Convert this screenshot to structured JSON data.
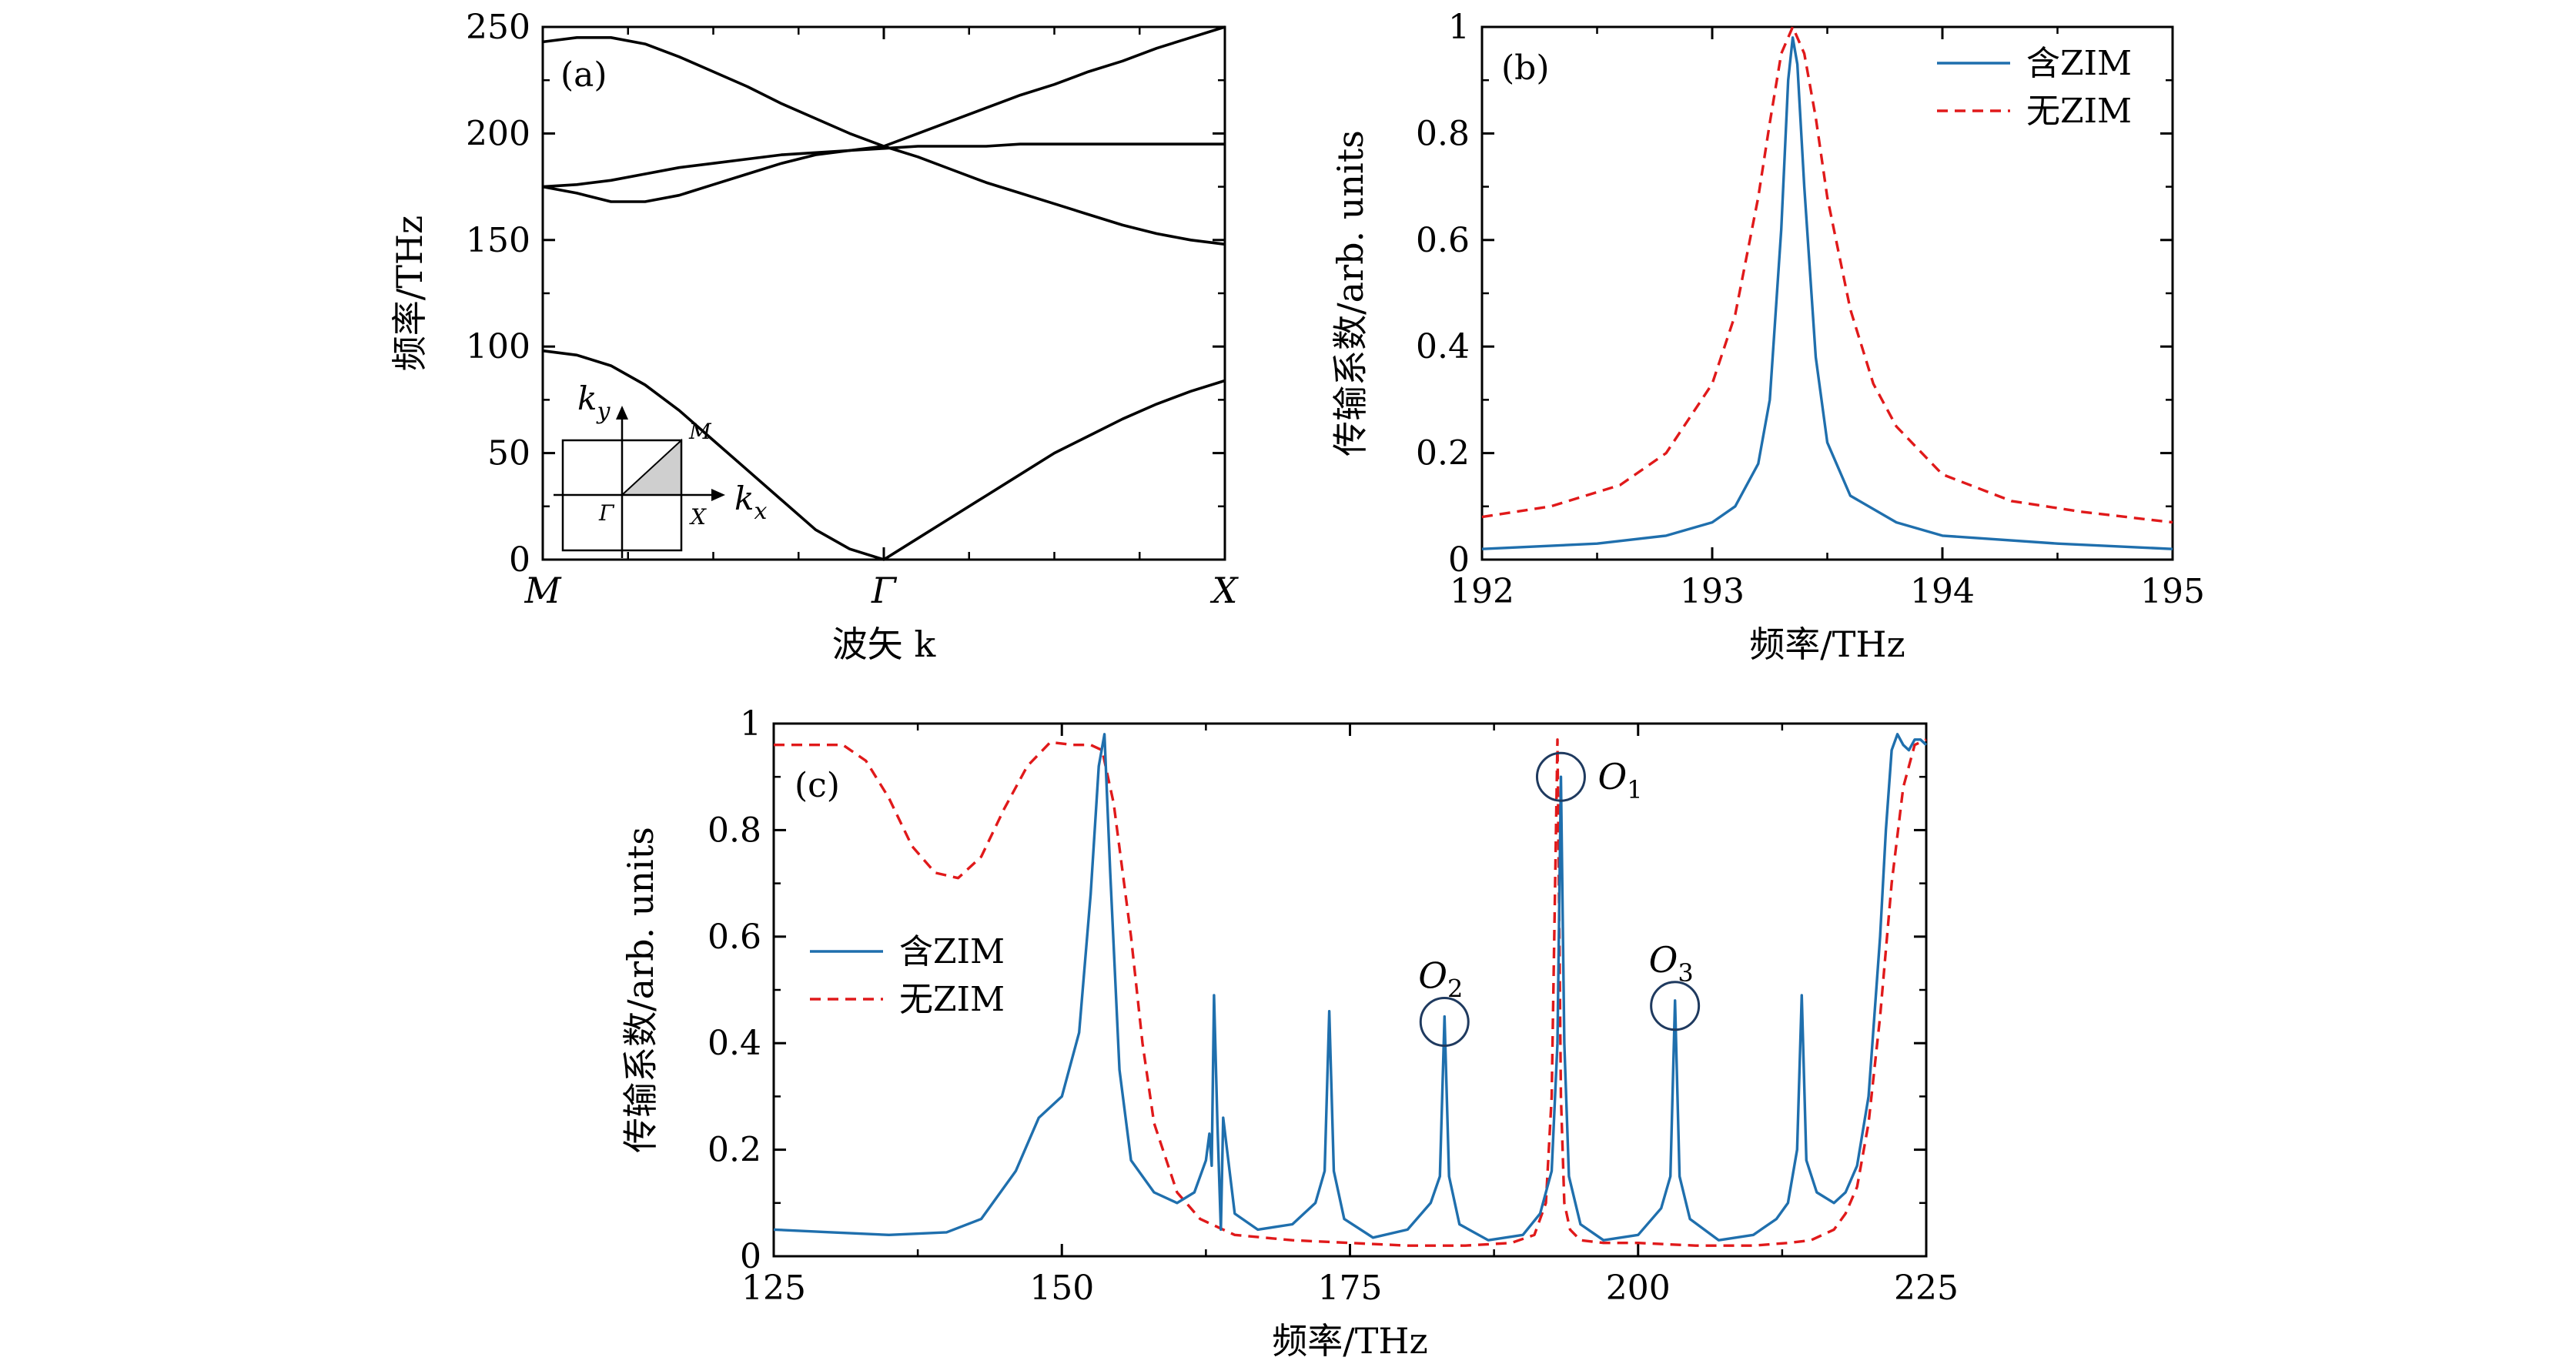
{
  "chart_data": [
    {
      "id": "a",
      "panel_label": "(a)",
      "type": "line",
      "title": "",
      "xlabel": "波矢 k",
      "ylabel": "频率/THz",
      "ylim": [
        0,
        250
      ],
      "yticks": [
        0,
        50,
        100,
        150,
        200,
        250
      ],
      "xticks": [
        "M",
        "Γ",
        "X"
      ],
      "x": [
        0,
        0.1,
        0.2,
        0.3,
        0.4,
        0.5,
        0.6,
        0.7,
        0.8,
        0.9,
        1.0,
        1.1,
        1.2,
        1.3,
        1.4,
        1.5,
        1.6,
        1.7,
        1.8,
        1.9,
        2.0
      ],
      "series": [
        {
          "name": "band1",
          "values": [
            98,
            96,
            91,
            82,
            70,
            56,
            42,
            28,
            14,
            5,
            0,
            10,
            20,
            30,
            40,
            50,
            58,
            66,
            73,
            79,
            84
          ]
        },
        {
          "name": "band2",
          "values": [
            175,
            172,
            168,
            168,
            171,
            176,
            181,
            186,
            190,
            192,
            194,
            189,
            183,
            177,
            172,
            167,
            162,
            157,
            153,
            150,
            148
          ]
        },
        {
          "name": "band3",
          "values": [
            175,
            176,
            178,
            181,
            184,
            186,
            188,
            190,
            191,
            192,
            193,
            194,
            194,
            194,
            195,
            195,
            195,
            195,
            195,
            195,
            195
          ]
        },
        {
          "name": "band4",
          "values": [
            243,
            245,
            245,
            242,
            236,
            229,
            222,
            214,
            207,
            200,
            194,
            200,
            206,
            212,
            218,
            223,
            229,
            234,
            240,
            245,
            250
          ]
        }
      ],
      "inset": {
        "labels": [
          "ky",
          "kx",
          "M",
          "Γ",
          "X"
        ]
      }
    },
    {
      "id": "b",
      "panel_label": "(b)",
      "type": "line",
      "title": "",
      "xlabel": "频率/THz",
      "ylabel": "传输系数/arb. units",
      "xlim": [
        192,
        195
      ],
      "ylim": [
        0,
        1.0
      ],
      "xticks": [
        192,
        193,
        194,
        195
      ],
      "yticks": [
        0,
        0.2,
        0.4,
        0.6,
        0.8,
        1.0
      ],
      "legend_position": "top-right",
      "series": [
        {
          "name": "含ZIM",
          "color": "#1f6fad",
          "style": "solid",
          "x": [
            192.0,
            192.5,
            192.8,
            193.0,
            193.1,
            193.2,
            193.25,
            193.3,
            193.33,
            193.35,
            193.37,
            193.4,
            193.45,
            193.5,
            193.6,
            193.8,
            194.0,
            194.5,
            195.0
          ],
          "values": [
            0.02,
            0.03,
            0.045,
            0.07,
            0.1,
            0.18,
            0.3,
            0.62,
            0.9,
            0.98,
            0.93,
            0.7,
            0.38,
            0.22,
            0.12,
            0.07,
            0.045,
            0.03,
            0.02
          ]
        },
        {
          "name": "无ZIM",
          "color": "#e0191a",
          "style": "dashed",
          "x": [
            192.0,
            192.3,
            192.6,
            192.8,
            193.0,
            193.1,
            193.2,
            193.25,
            193.3,
            193.35,
            193.4,
            193.45,
            193.5,
            193.6,
            193.7,
            193.8,
            194.0,
            194.3,
            194.6,
            195.0
          ],
          "values": [
            0.08,
            0.1,
            0.14,
            0.2,
            0.33,
            0.46,
            0.68,
            0.82,
            0.95,
            1.0,
            0.95,
            0.83,
            0.68,
            0.47,
            0.33,
            0.25,
            0.16,
            0.11,
            0.09,
            0.07
          ]
        }
      ]
    },
    {
      "id": "c",
      "panel_label": "(c)",
      "type": "line",
      "title": "",
      "xlabel": "频率/THz",
      "ylabel": "传输系数/arb. units",
      "xlim": [
        125,
        225
      ],
      "ylim": [
        0,
        1.0
      ],
      "xticks": [
        125,
        150,
        175,
        200,
        225
      ],
      "yticks": [
        0,
        0.2,
        0.4,
        0.6,
        0.8,
        1.0
      ],
      "legend_position": "middle-left",
      "series": [
        {
          "name": "含ZIM",
          "color": "#1f6fad",
          "style": "solid",
          "x": [
            125,
            130,
            135,
            140,
            143,
            146,
            148,
            150,
            151.5,
            152.5,
            153.2,
            153.7,
            154.2,
            155,
            156,
            158,
            160,
            161.5,
            162.5,
            162.8,
            163.0,
            163.2,
            163.5,
            163.8,
            164.0,
            165,
            167,
            170,
            172,
            172.8,
            173.2,
            173.6,
            174.5,
            177,
            180,
            182,
            182.8,
            183.2,
            183.6,
            184.5,
            187,
            190,
            191.5,
            192.5,
            193.0,
            193.3,
            193.6,
            194.0,
            195,
            197,
            200,
            202,
            202.8,
            203.2,
            203.6,
            204.5,
            207,
            210,
            212,
            213,
            213.8,
            214.2,
            214.6,
            215.5,
            217,
            218,
            219,
            220,
            221,
            221.5,
            222,
            222.5,
            223,
            223.5,
            224,
            224.5,
            225
          ],
          "values": [
            0.05,
            0.045,
            0.04,
            0.045,
            0.07,
            0.16,
            0.26,
            0.3,
            0.42,
            0.68,
            0.92,
            0.98,
            0.72,
            0.35,
            0.18,
            0.12,
            0.1,
            0.12,
            0.18,
            0.23,
            0.17,
            0.49,
            0.25,
            0.05,
            0.26,
            0.08,
            0.05,
            0.06,
            0.1,
            0.16,
            0.46,
            0.16,
            0.07,
            0.035,
            0.05,
            0.1,
            0.15,
            0.45,
            0.15,
            0.06,
            0.03,
            0.04,
            0.08,
            0.16,
            0.4,
            0.9,
            0.4,
            0.15,
            0.06,
            0.03,
            0.04,
            0.09,
            0.15,
            0.48,
            0.15,
            0.07,
            0.03,
            0.04,
            0.07,
            0.1,
            0.2,
            0.49,
            0.18,
            0.12,
            0.1,
            0.12,
            0.17,
            0.3,
            0.6,
            0.8,
            0.95,
            0.98,
            0.96,
            0.95,
            0.97,
            0.97,
            0.96
          ]
        },
        {
          "name": "无ZIM",
          "color": "#e0191a",
          "style": "dashed",
          "x": [
            125,
            128,
            131,
            133,
            135,
            137,
            139,
            141,
            143,
            145,
            147,
            149,
            151,
            152.5,
            153.5,
            154.5,
            156,
            157,
            158,
            160,
            162,
            165,
            170,
            175,
            180,
            185,
            189,
            191,
            192,
            192.5,
            193.0,
            193.3,
            193.6,
            194.1,
            195,
            197,
            200,
            205,
            210,
            213,
            215,
            217,
            218,
            219,
            220,
            221,
            222,
            223,
            224,
            225
          ],
          "values": [
            0.96,
            0.96,
            0.96,
            0.93,
            0.86,
            0.77,
            0.72,
            0.71,
            0.75,
            0.84,
            0.92,
            0.965,
            0.96,
            0.96,
            0.95,
            0.85,
            0.6,
            0.4,
            0.25,
            0.12,
            0.07,
            0.04,
            0.03,
            0.025,
            0.02,
            0.02,
            0.025,
            0.04,
            0.1,
            0.3,
            0.97,
            0.3,
            0.1,
            0.05,
            0.03,
            0.025,
            0.025,
            0.02,
            0.02,
            0.025,
            0.03,
            0.05,
            0.08,
            0.13,
            0.25,
            0.45,
            0.7,
            0.88,
            0.96,
            0.97
          ]
        }
      ],
      "annotations": [
        {
          "label_main": "O",
          "label_sub": "1",
          "x": 193.3,
          "y": 0.9
        },
        {
          "label_main": "O",
          "label_sub": "2",
          "x": 183.2,
          "y": 0.44
        },
        {
          "label_main": "O",
          "label_sub": "3",
          "x": 203.2,
          "y": 0.47
        }
      ]
    }
  ]
}
